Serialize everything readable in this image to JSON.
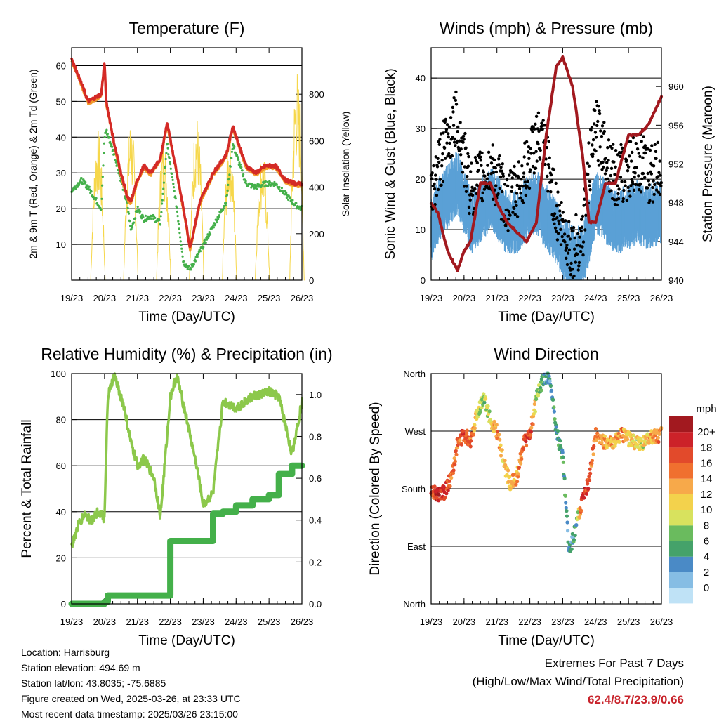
{
  "time_ticks": [
    "19/23",
    "20/23",
    "21/23",
    "22/23",
    "23/23",
    "24/23",
    "25/23",
    "26/23"
  ],
  "colors": {
    "temp_2m": "#d42a26",
    "temp_9m": "#f39a2b",
    "dewpoint": "#44b04a",
    "solar": "#f6d74a",
    "wind": "#5aa0d6",
    "gust": "#000000",
    "pressure": "#a2191f",
    "rh": "#8cc84b",
    "precip": "#44b04a",
    "extremes": "#c8232b"
  },
  "charts": {
    "temperature": {
      "title": "Temperature (F)",
      "xlabel": "Time (Day/UTC)",
      "ylabel_left": "2m & 9m T (Red, Orange) & 2m Td (Green)",
      "ylabel_right": "Solar Insolation (Yellow)",
      "left_ticks": [
        "10",
        "20",
        "30",
        "40",
        "50",
        "60"
      ],
      "right_ticks": [
        "0",
        "200",
        "400",
        "600",
        "800"
      ]
    },
    "winds": {
      "title": "Winds (mph) & Pressure (mb)",
      "xlabel": "Time (Day/UTC)",
      "ylabel_left": "Sonic Wind & Gust (Blue, Black)",
      "ylabel_right": "Station Pressure (Maroon)",
      "left_ticks": [
        "0",
        "10",
        "20",
        "30",
        "40"
      ],
      "right_ticks": [
        "940",
        "944",
        "948",
        "952",
        "956",
        "960"
      ]
    },
    "humidity": {
      "title": "Relative Humidity (%) & Precipitation (in)",
      "xlabel": "Time (Day/UTC)",
      "ylabel_left": "Percent & Total Rainfall",
      "left_ticks": [
        "0",
        "20",
        "40",
        "60",
        "80",
        "100"
      ],
      "right_ticks": [
        "0.0",
        "0.2",
        "0.4",
        "0.6",
        "0.8",
        "1.0"
      ]
    },
    "direction": {
      "title": "Wind Direction",
      "xlabel": "Time (Day/UTC)",
      "ylabel_left": "Direction (Colored By Speed)",
      "left_ticks": [
        "North",
        "East",
        "South",
        "West",
        "North"
      ],
      "legend_title": "mph",
      "legend_labels": [
        "20+",
        "18",
        "16",
        "14",
        "12",
        "10",
        "8",
        "6",
        "4",
        "2",
        "0"
      ],
      "legend_colors": [
        "#a2191f",
        "#cc2229",
        "#e24a2b",
        "#f0702f",
        "#f7a94a",
        "#f3d24c",
        "#d8e25e",
        "#6abb5e",
        "#45a26a",
        "#4a8ac6",
        "#86bde4",
        "#bfe2f6"
      ]
    }
  },
  "chart_data": [
    {
      "type": "line",
      "title": "Temperature (F)",
      "xlabel": "Time (Day/UTC)",
      "x": [
        0,
        0.3,
        0.5,
        0.9,
        1.0,
        1.05,
        1.3,
        1.5,
        1.7,
        1.8,
        2.0,
        2.2,
        2.4,
        2.7,
        2.9,
        3.2,
        3.4,
        3.6,
        3.9,
        4.3,
        4.7,
        4.9,
        5.3,
        5.6,
        5.9,
        6.2,
        6.5,
        6.8,
        7.0
      ],
      "ylim": [
        0,
        65
      ],
      "y2lim": [
        0,
        1000
      ],
      "series": [
        {
          "name": "2m T",
          "values": [
            62,
            55,
            50,
            52,
            61,
            50,
            38,
            30,
            23,
            22,
            28,
            32,
            30,
            34,
            44,
            30,
            20,
            9,
            22,
            30,
            35,
            43,
            32,
            30,
            32,
            32,
            28,
            27,
            27
          ]
        },
        {
          "name": "2m Td",
          "values": [
            25,
            28,
            26,
            20,
            40,
            42,
            35,
            28,
            21,
            14,
            20,
            17,
            18,
            16,
            38,
            20,
            5,
            3,
            8,
            15,
            22,
            38,
            27,
            26,
            27,
            27,
            24,
            21,
            20
          ]
        }
      ],
      "solar_peaks": [
        {
          "x": 0.8,
          "value": 650
        },
        {
          "x": 1.8,
          "value": 700
        },
        {
          "x": 2.8,
          "value": 620
        },
        {
          "x": 3.8,
          "value": 720
        },
        {
          "x": 4.8,
          "value": 620
        },
        {
          "x": 5.8,
          "value": 560
        },
        {
          "x": 6.85,
          "value": 920
        }
      ]
    },
    {
      "type": "line",
      "title": "Winds (mph) & Pressure (mb)",
      "xlabel": "Time (Day/UTC)",
      "x": [
        0,
        0.2,
        0.5,
        0.8,
        1.0,
        1.2,
        1.5,
        1.8,
        2.0,
        2.3,
        2.6,
        2.9,
        3.2,
        3.5,
        3.8,
        4.0,
        4.3,
        4.6,
        4.8,
        5.0,
        5.3,
        5.6,
        6.0,
        6.3,
        6.6,
        7.0
      ],
      "ylim": [
        0,
        46
      ],
      "y2lim": [
        940,
        964
      ],
      "series": [
        {
          "name": "Wind",
          "values": [
            10,
            14,
            17,
            20,
            16,
            12,
            14,
            17,
            15,
            12,
            12,
            15,
            16,
            13,
            10,
            7,
            5,
            5,
            10,
            16,
            14,
            12,
            13,
            14,
            13,
            14
          ]
        },
        {
          "name": "Gust",
          "values": [
            16,
            22,
            28,
            32,
            24,
            18,
            20,
            22,
            20,
            15,
            18,
            22,
            28,
            25,
            14,
            10,
            6,
            9,
            22,
            30,
            26,
            20,
            22,
            24,
            21,
            22
          ]
        },
        {
          "name": "Pressure",
          "values": [
            948,
            947,
            943,
            941,
            943,
            944,
            950,
            950,
            948,
            946,
            945,
            944,
            946,
            955,
            962,
            963,
            960,
            953,
            946,
            946,
            950,
            950,
            955,
            955,
            956,
            959
          ]
        }
      ]
    },
    {
      "type": "line",
      "title": "Relative Humidity (%) & Precipitation (in)",
      "xlabel": "Time (Day/UTC)",
      "x": [
        0,
        0.2,
        0.4,
        0.6,
        0.8,
        1.0,
        1.1,
        1.3,
        1.6,
        1.8,
        2.0,
        2.2,
        2.5,
        2.7,
        3.0,
        3.2,
        3.5,
        3.8,
        4.0,
        4.3,
        4.6,
        5.0,
        5.5,
        6.0,
        6.3,
        6.7,
        7.0
      ],
      "ylim": [
        0,
        100
      ],
      "y2lim": [
        0,
        1.1
      ],
      "series": [
        {
          "name": "RH",
          "values": [
            25,
            34,
            39,
            36,
            40,
            37,
            90,
            99,
            85,
            70,
            60,
            63,
            55,
            38,
            90,
            99,
            80,
            60,
            43,
            48,
            88,
            85,
            90,
            92,
            90,
            65,
            88
          ]
        },
        {
          "name": "Precipitation",
          "values": [
            0,
            0,
            0,
            0,
            0,
            0.01,
            0.04,
            0.04,
            0.04,
            0.04,
            0.04,
            0.04,
            0.04,
            0.04,
            0.3,
            0.3,
            0.3,
            0.3,
            0.3,
            0.43,
            0.44,
            0.47,
            0.5,
            0.52,
            0.62,
            0.66,
            0.66
          ]
        }
      ]
    },
    {
      "type": "scatter",
      "title": "Wind Direction",
      "xlabel": "Time (Day/UTC)",
      "x": [
        0,
        0.2,
        0.4,
        0.6,
        0.8,
        1.0,
        1.2,
        1.4,
        1.6,
        1.8,
        2.0,
        2.2,
        2.4,
        2.6,
        2.8,
        3.0,
        3.2,
        3.4,
        3.6,
        3.8,
        4.0,
        4.2,
        4.4,
        4.6,
        4.8,
        5.0,
        5.2,
        5.5,
        5.8,
        6.1,
        6.4,
        6.7,
        7.0
      ],
      "ylim": [
        0,
        360
      ],
      "series": [
        {
          "name": "Direction",
          "values": [
            180,
            170,
            175,
            195,
            250,
            265,
            255,
            300,
            320,
            290,
            270,
            220,
            190,
            195,
            250,
            265,
            320,
            350,
            355,
            270,
            230,
            80,
            120,
            160,
            195,
            265,
            255,
            250,
            265,
            255,
            250,
            260,
            265
          ]
        },
        {
          "name": "Speed",
          "values": [
            16,
            18,
            17,
            14,
            15,
            16,
            15,
            9,
            7,
            9,
            13,
            10,
            12,
            12,
            15,
            17,
            7,
            4,
            2,
            3,
            4,
            2,
            3,
            18,
            16,
            14,
            13,
            11,
            13,
            10,
            8,
            12,
            14
          ]
        }
      ]
    }
  ],
  "info": {
    "location": "Location: Harrisburg",
    "elevation": "Station elevation: 494.69 m",
    "latlon": "Station lat/lon: 43.8035; -75.6885",
    "created": "Figure created on Wed, 2025-03-26, at 23:33 UTC",
    "recent": "Most recent data timestamp: 2025/03/26 23:15:00"
  },
  "extremes": {
    "line1": "Extremes For Past 7 Days",
    "line2": "(High/Low/Max Wind/Total Precipitation)",
    "values": "62.4/8.7/23.9/0.66"
  }
}
